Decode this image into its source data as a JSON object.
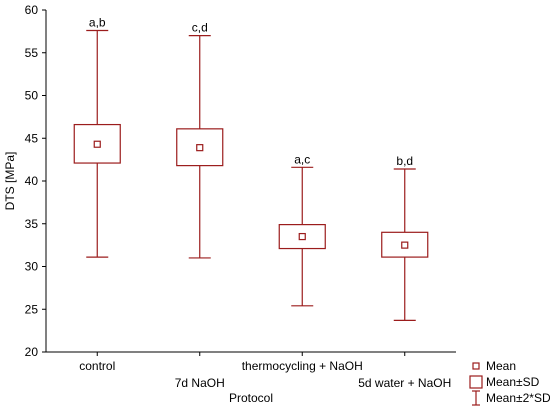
{
  "chart_data": {
    "type": "boxplot",
    "title": "",
    "xlabel": "Protocol",
    "ylabel": "DTS [MPa]",
    "ylim": [
      20,
      60
    ],
    "yticks": [
      20,
      25,
      30,
      35,
      40,
      45,
      50,
      55,
      60
    ],
    "grid": false,
    "legend_position": "bottom-right",
    "color": "#9b1c1c",
    "categories": [
      "control",
      "7d NaOH",
      "thermocycling + NaOH",
      "5d water + NaOH"
    ],
    "series": [
      {
        "category": "control",
        "mean": 44.3,
        "sd_low": 42.1,
        "sd_high": 46.6,
        "sd2_low": 31.1,
        "sd2_high": 57.6,
        "significance": "a,b"
      },
      {
        "category": "7d NaOH",
        "mean": 43.9,
        "sd_low": 41.8,
        "sd_high": 46.1,
        "sd2_low": 31.0,
        "sd2_high": 57.0,
        "significance": "c,d"
      },
      {
        "category": "thermocycling + NaOH",
        "mean": 33.5,
        "sd_low": 32.1,
        "sd_high": 34.9,
        "sd2_low": 25.4,
        "sd2_high": 41.6,
        "significance": "a,c"
      },
      {
        "category": "5d water + NaOH",
        "mean": 32.5,
        "sd_low": 31.1,
        "sd_high": 34.0,
        "sd2_low": 23.7,
        "sd2_high": 41.4,
        "significance": "b,d"
      }
    ],
    "legend": [
      {
        "key": "mean",
        "label": "Mean"
      },
      {
        "key": "sd",
        "label": "Mean±SD"
      },
      {
        "key": "sd2",
        "label": "Mean±2*SD"
      }
    ]
  }
}
